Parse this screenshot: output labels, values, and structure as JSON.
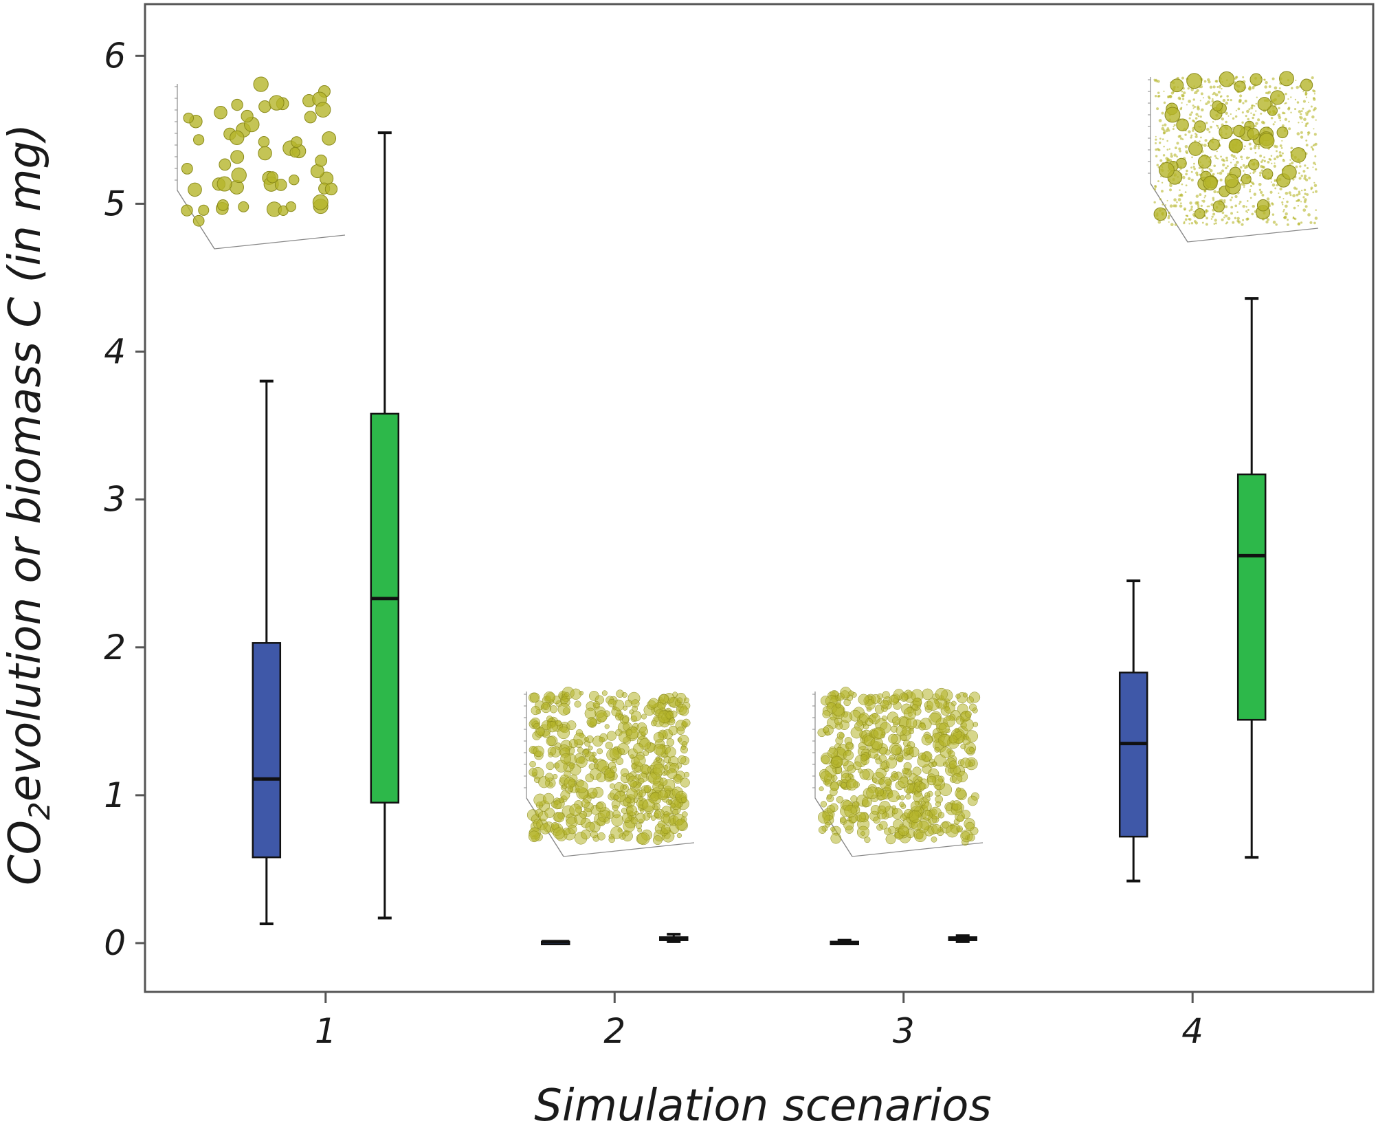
{
  "chart_data": {
    "type": "box",
    "xlabel": "Simulation scenarios",
    "ylabel_parts": [
      "CO",
      "2",
      "evolution or biomass C (in mg)"
    ],
    "categories": [
      "1",
      "2",
      "3",
      "4"
    ],
    "ylim": [
      -0.33,
      6.35
    ],
    "yticks": [
      0,
      1,
      2,
      3,
      4,
      5,
      6
    ],
    "grid": false,
    "colors": {
      "series_a": "#3f58a8",
      "series_b": "#2db84a",
      "inset": "#b5b52a"
    },
    "series": [
      {
        "boxes": [
          {
            "category": "1",
            "whisker_low": 0.13,
            "q1": 0.58,
            "median": 1.11,
            "q3": 2.03,
            "whisker_high": 3.8
          },
          {
            "category": "2",
            "whisker_low": 0.0,
            "q1": 0.0,
            "median": 0.01,
            "q3": 0.01,
            "whisker_high": 0.01
          },
          {
            "category": "3",
            "whisker_low": 0.0,
            "q1": 0.0,
            "median": 0.0,
            "q3": 0.01,
            "whisker_high": 0.02
          },
          {
            "category": "4",
            "whisker_low": 0.42,
            "q1": 0.72,
            "median": 1.35,
            "q3": 1.83,
            "whisker_high": 2.45
          }
        ]
      },
      {
        "boxes": [
          {
            "category": "1",
            "whisker_low": 0.17,
            "q1": 0.95,
            "median": 2.33,
            "q3": 3.58,
            "whisker_high": 5.48
          },
          {
            "category": "2",
            "whisker_low": 0.01,
            "q1": 0.02,
            "median": 0.03,
            "q3": 0.04,
            "whisker_high": 0.06
          },
          {
            "category": "3",
            "whisker_low": 0.01,
            "q1": 0.02,
            "median": 0.03,
            "q3": 0.04,
            "whisker_high": 0.05
          },
          {
            "category": "4",
            "whisker_low": 0.58,
            "q1": 1.51,
            "median": 2.62,
            "q3": 3.17,
            "whisker_high": 4.36
          }
        ]
      }
    ],
    "insets": [
      {
        "category": "1",
        "pattern": "discrete spheres"
      },
      {
        "category": "2",
        "pattern": "dense continuous"
      },
      {
        "category": "3",
        "pattern": "dense continuous"
      },
      {
        "category": "4",
        "pattern": "spheres with diffuse cloud"
      }
    ]
  }
}
